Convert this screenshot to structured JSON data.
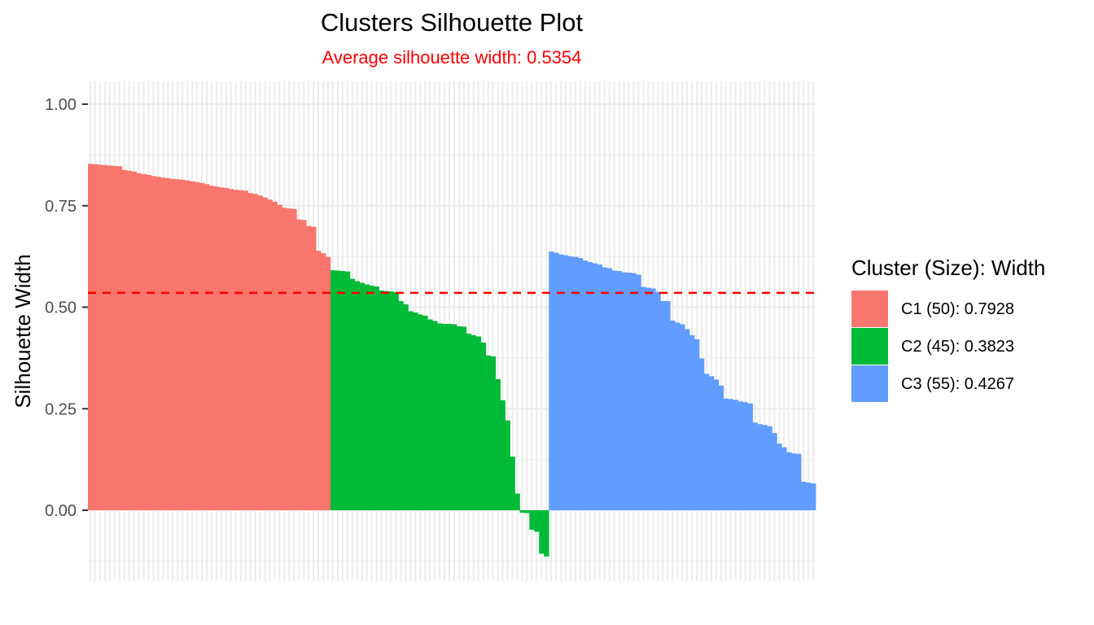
{
  "chart_data": {
    "type": "bar",
    "title": "Clusters Silhouette Plot",
    "subtitle": "Average silhouette width: 0.5354",
    "xlabel": "",
    "ylabel": "Silhouette Width",
    "ylim": [
      -0.15,
      1.05
    ],
    "y_ticks": [
      "0.00",
      "0.25",
      "0.50",
      "0.75",
      "1.00"
    ],
    "y_tick_values": [
      0,
      0.25,
      0.5,
      0.75,
      1.0
    ],
    "grid": true,
    "reference_line": {
      "value": 0.5354,
      "style": "dashed",
      "color": "#FF0000"
    },
    "legend_title": "Cluster (Size): Width",
    "legend_position": "right",
    "series": [
      {
        "name": "C1 (50): 0.7928",
        "color": "#F8766D",
        "values": [
          0.853,
          0.852,
          0.851,
          0.85,
          0.849,
          0.848,
          0.847,
          0.838,
          0.836,
          0.834,
          0.83,
          0.828,
          0.826,
          0.823,
          0.821,
          0.819,
          0.818,
          0.816,
          0.815,
          0.814,
          0.812,
          0.81,
          0.808,
          0.806,
          0.803,
          0.799,
          0.797,
          0.795,
          0.794,
          0.791,
          0.789,
          0.788,
          0.787,
          0.781,
          0.779,
          0.775,
          0.77,
          0.765,
          0.76,
          0.752,
          0.745,
          0.743,
          0.742,
          0.716,
          0.715,
          0.7,
          0.698,
          0.639,
          0.633,
          0.624
        ]
      },
      {
        "name": "C2 (45): 0.3823",
        "color": "#00BA38",
        "values": [
          0.591,
          0.59,
          0.589,
          0.588,
          0.57,
          0.564,
          0.56,
          0.556,
          0.553,
          0.551,
          0.541,
          0.54,
          0.539,
          0.537,
          0.515,
          0.507,
          0.49,
          0.487,
          0.482,
          0.479,
          0.47,
          0.466,
          0.46,
          0.459,
          0.459,
          0.458,
          0.453,
          0.452,
          0.435,
          0.431,
          0.428,
          0.413,
          0.381,
          0.379,
          0.323,
          0.271,
          0.221,
          0.132,
          0.041,
          -0.006,
          -0.007,
          -0.048,
          -0.053,
          -0.107,
          -0.114
        ]
      },
      {
        "name": "C3 (55): 0.4267",
        "color": "#619CFF",
        "values": [
          0.637,
          0.634,
          0.63,
          0.628,
          0.625,
          0.624,
          0.621,
          0.615,
          0.611,
          0.608,
          0.605,
          0.598,
          0.596,
          0.59,
          0.589,
          0.586,
          0.585,
          0.584,
          0.58,
          0.55,
          0.548,
          0.546,
          0.538,
          0.515,
          0.515,
          0.467,
          0.462,
          0.458,
          0.446,
          0.431,
          0.421,
          0.374,
          0.336,
          0.33,
          0.322,
          0.307,
          0.275,
          0.274,
          0.272,
          0.268,
          0.266,
          0.263,
          0.216,
          0.212,
          0.21,
          0.207,
          0.19,
          0.164,
          0.155,
          0.143,
          0.14,
          0.139,
          0.07,
          0.068,
          0.066
        ]
      }
    ]
  }
}
